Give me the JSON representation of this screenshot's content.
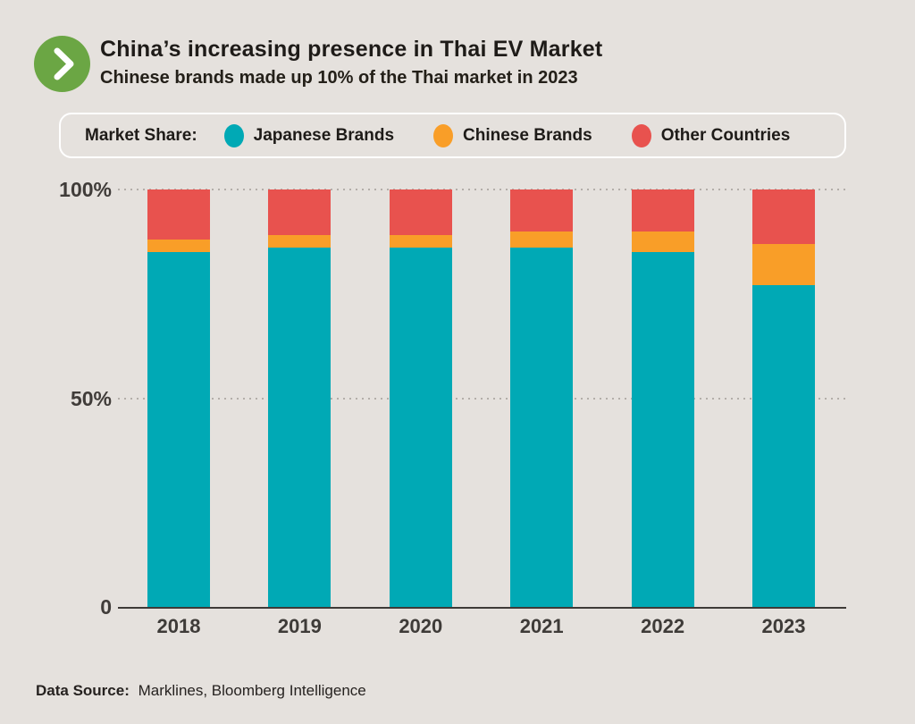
{
  "header": {
    "title": "China’s increasing presence in Thai EV Market",
    "subtitle": "Chinese brands made up 10% of the Thai market in 2023"
  },
  "legend": {
    "title": "Market Share:",
    "items": [
      {
        "label": "Japanese Brands",
        "color": "#00A9B5"
      },
      {
        "label": "Chinese Brands",
        "color": "#F99E28"
      },
      {
        "label": "Other Countries",
        "color": "#E8524E"
      }
    ]
  },
  "chart_data": {
    "type": "bar",
    "stacked": true,
    "title": "China’s increasing presence in Thai EV Market",
    "subtitle": "Chinese brands made up 10% of the Thai market in 2023",
    "categories": [
      "2018",
      "2019",
      "2020",
      "2021",
      "2022",
      "2023"
    ],
    "series": [
      {
        "name": "Japanese Brands",
        "color": "#00A9B5",
        "values": [
          85,
          86,
          86,
          86,
          85,
          77
        ]
      },
      {
        "name": "Chinese Brands",
        "color": "#F99E28",
        "values": [
          3,
          3,
          3,
          4,
          5,
          10
        ]
      },
      {
        "name": "Other Countries",
        "color": "#E8524E",
        "values": [
          12,
          11,
          11,
          10,
          10,
          13
        ]
      }
    ],
    "xlabel": "",
    "ylabel": "",
    "ylim": [
      0,
      100
    ],
    "yticks": [
      {
        "value": 100,
        "label": "100%"
      },
      {
        "value": 50,
        "label": "50%"
      },
      {
        "value": 0,
        "label": "0"
      }
    ],
    "grid": "horizontal dotted lines at 50% and 100%, solid baseline at 0",
    "legend_position": "top",
    "units": "percent of market share"
  },
  "footer": {
    "source_label": "Data Source:",
    "source_value": "Marklines, Bloomberg Intelligence"
  },
  "colors": {
    "background": "#E5E1DD",
    "japanese_brands": "#00A9B5",
    "chinese_brands": "#F99E28",
    "other_countries": "#E8524E",
    "header_icon_green": "#6BA644",
    "axis_text": "#403C39",
    "gridline": "#B3AEA9",
    "legend_border": "#FFFFFF"
  },
  "icons": {
    "header_icon": "chevron-right-icon"
  }
}
